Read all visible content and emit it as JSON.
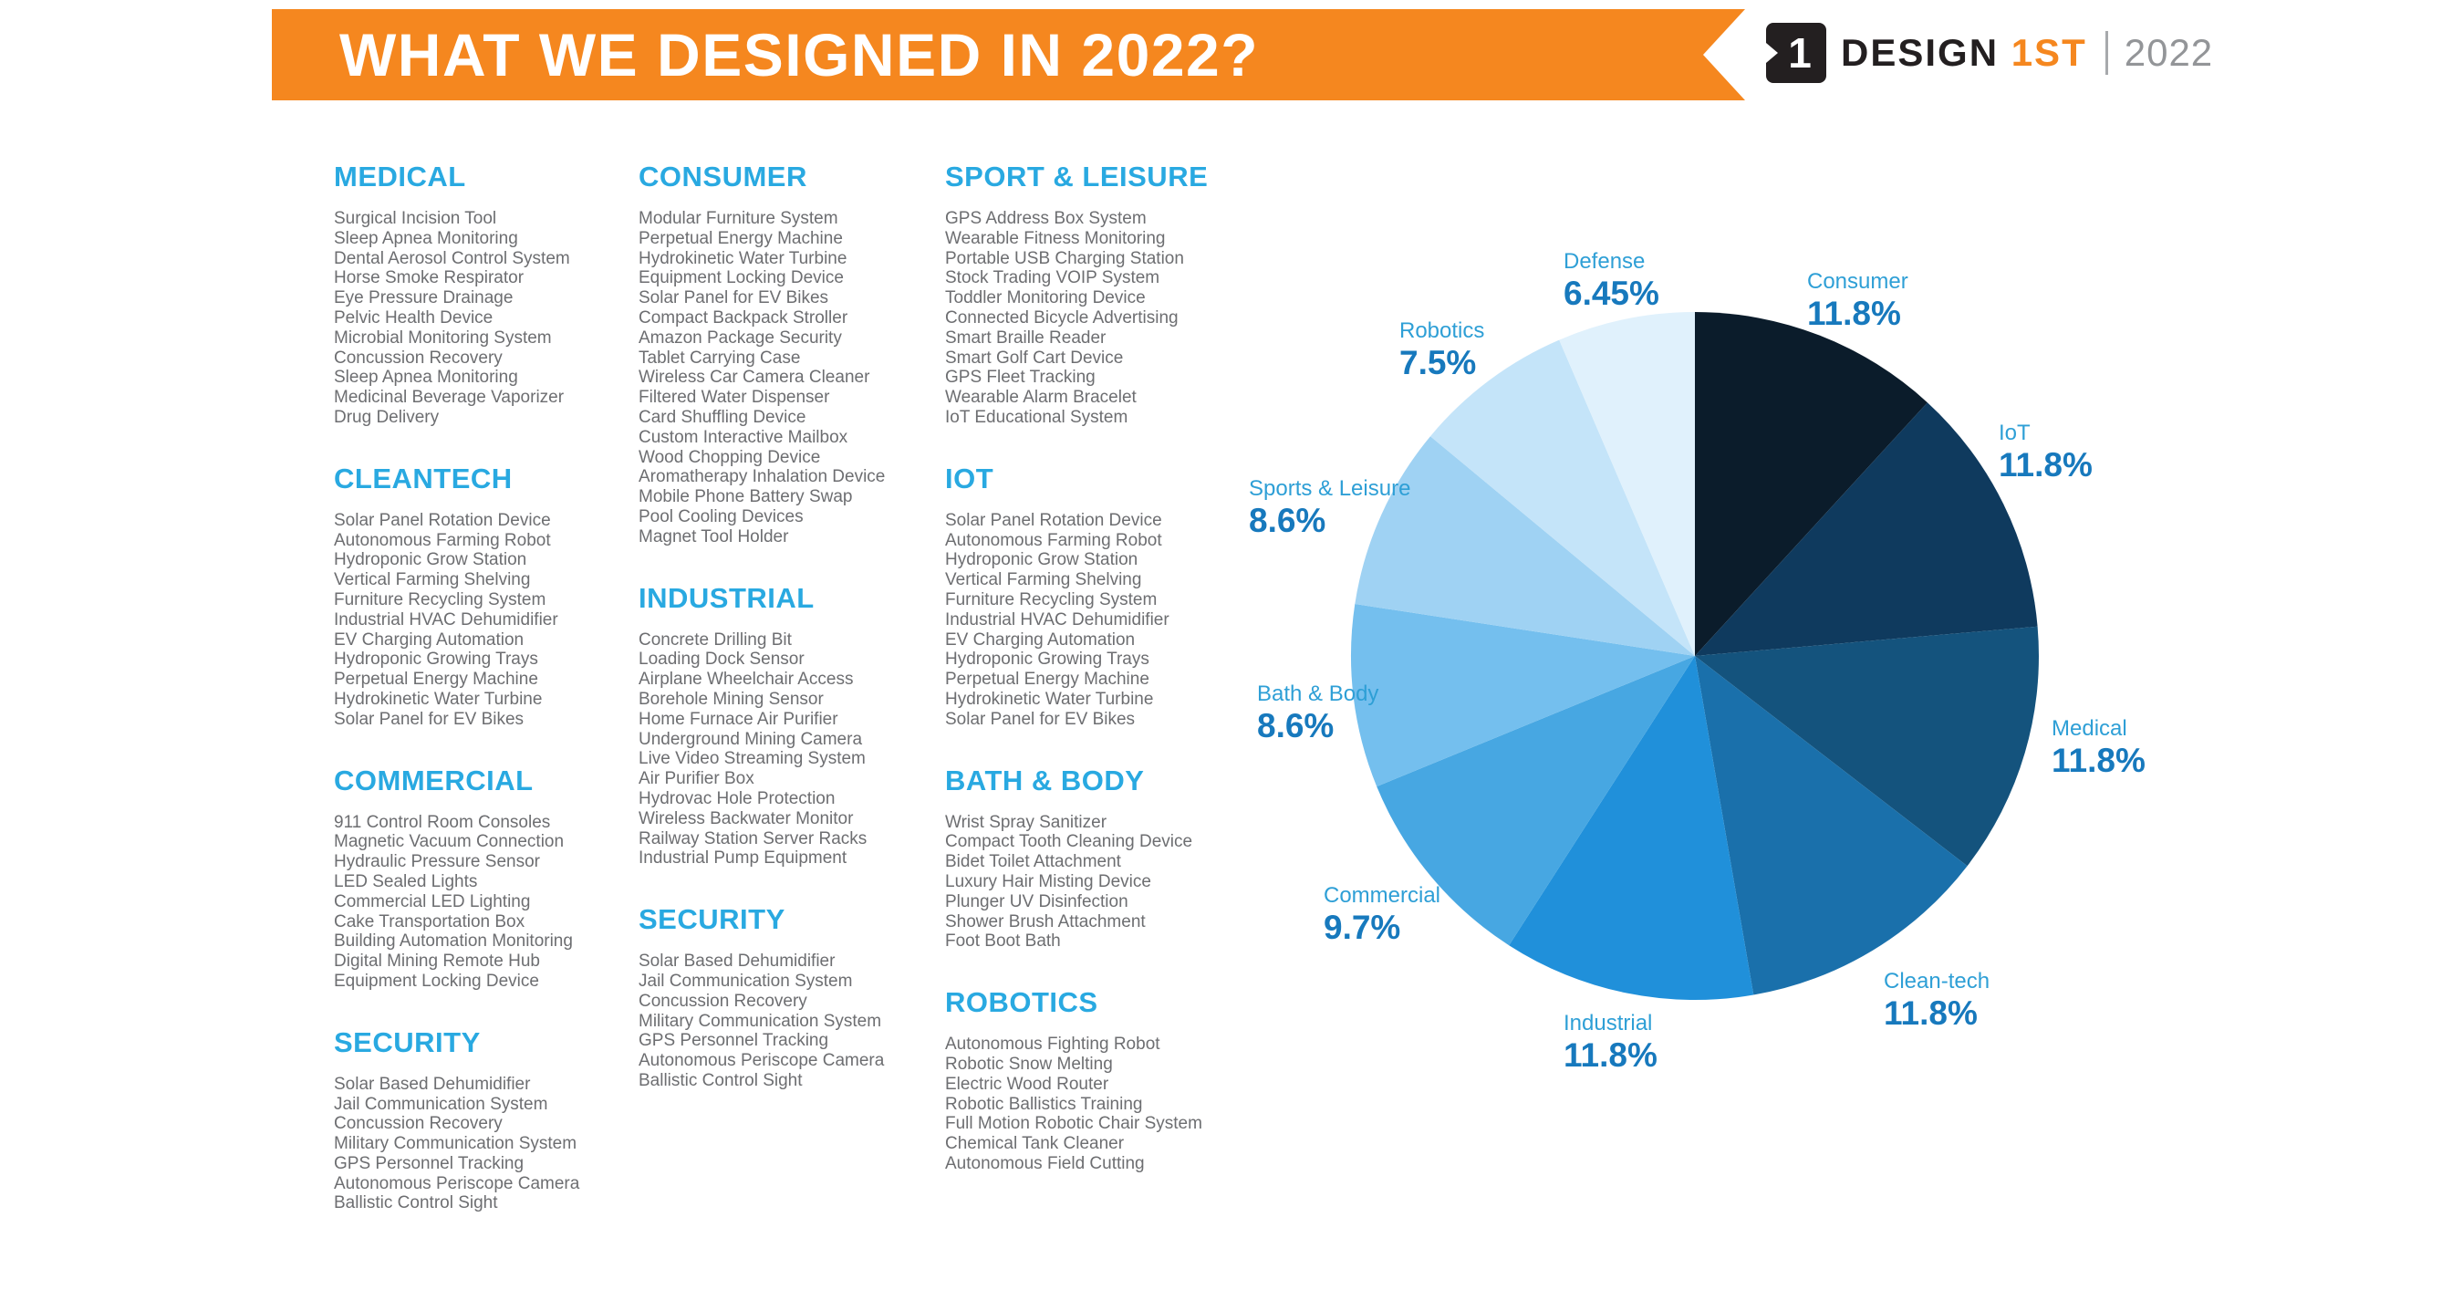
{
  "banner": {
    "title": "WHAT WE DESIGNED IN 2022?"
  },
  "logo": {
    "icon_glyph": "1",
    "brand_design": "DESIGN",
    "brand_1st": "1ST",
    "year": "2022"
  },
  "theme": {
    "orange": "#f5871f",
    "heading_blue": "#29a9e1",
    "list_gray": "#6d6e71",
    "logo_black": "#231f20",
    "logo_gray": "#939598",
    "white": "#ffffff"
  },
  "columns": [
    {
      "sections": [
        {
          "heading": "MEDICAL",
          "items": [
            "Surgical Incision Tool",
            "Sleep Apnea Monitoring",
            "Dental Aerosol Control System",
            "Horse  Smoke Respirator",
            "Eye Pressure Drainage",
            "Pelvic Health Device",
            "Microbial Monitoring System",
            "Concussion Recovery",
            "Sleep Apnea Monitoring",
            "Medicinal Beverage Vaporizer",
            "Drug Delivery"
          ]
        },
        {
          "heading": "CLEANTECH",
          "items": [
            "Solar Panel Rotation Device",
            "Autonomous Farming Robot",
            "Hydroponic Grow Station",
            "Vertical Farming Shelving",
            "Furniture Recycling System",
            "Industrial HVAC Dehumidifier",
            "EV Charging Automation",
            "Hydroponic Growing Trays",
            "Perpetual Energy Machine",
            "Hydrokinetic Water Turbine",
            "Solar Panel for EV Bikes"
          ]
        },
        {
          "heading": "COMMERCIAL",
          "items": [
            "911 Control Room Consoles",
            "Magnetic Vacuum Connection",
            "Hydraulic Pressure Sensor",
            "LED Sealed Lights",
            "Commercial LED Lighting",
            "Cake Transportation Box",
            "Building Automation Monitoring",
            "Digital Mining Remote Hub",
            "Equipment Locking Device"
          ]
        },
        {
          "heading": "SECURITY",
          "items": [
            "Solar Based Dehumidifier",
            "Jail Communication System",
            "Concussion Recovery",
            "Military Communication System",
            "GPS Personnel Tracking",
            "Autonomous Periscope Camera",
            "Ballistic Control Sight"
          ]
        }
      ]
    },
    {
      "sections": [
        {
          "heading": "CONSUMER",
          "items": [
            "Modular Furniture System",
            "Perpetual Energy Machine",
            "Hydrokinetic Water Turbine",
            "Equipment Locking Device",
            "Solar Panel for EV Bikes",
            "Compact Backpack Stroller",
            "Amazon Package Security",
            "Tablet Carrying Case",
            "Wireless Car Camera Cleaner",
            "Filtered Water Dispenser",
            "Card Shuffling Device",
            "Custom Interactive Mailbox",
            "Wood Chopping Device",
            "Aromatherapy Inhalation Device",
            "Mobile Phone Battery Swap",
            "Pool Cooling Devices",
            "Magnet Tool Holder"
          ]
        },
        {
          "heading": "INDUSTRIAL",
          "items": [
            "Concrete Drilling Bit",
            "Loading Dock Sensor",
            "Airplane Wheelchair Access",
            "Borehole Mining Sensor",
            "Home Furnace Air Purifier",
            "Underground Mining Camera",
            "Live Video Streaming System",
            "Air Purifier Box",
            "Hydrovac Hole Protection",
            "Wireless Backwater Monitor",
            "Railway Station Server Racks",
            "Industrial Pump Equipment"
          ]
        },
        {
          "heading": "SECURITY",
          "items": [
            "Solar Based Dehumidifier",
            "Jail Communication System",
            "Concussion Recovery",
            "Military Communication System",
            "GPS Personnel Tracking",
            "Autonomous Periscope Camera",
            "Ballistic Control Sight"
          ]
        }
      ]
    },
    {
      "sections": [
        {
          "heading": "SPORT & LEISURE",
          "items": [
            "GPS Address Box System",
            "Wearable Fitness Monitoring",
            "Portable USB Charging Station",
            "Stock Trading VOIP System",
            "Toddler Monitoring Device",
            "Connected Bicycle Advertising",
            "Smart Braille Reader",
            "Smart Golf Cart Device",
            "GPS Fleet Tracking",
            "Wearable Alarm Bracelet",
            "IoT Educational System"
          ]
        },
        {
          "heading": "IOT",
          "items": [
            "Solar Panel Rotation Device",
            "Autonomous Farming Robot",
            "Hydroponic Grow Station",
            "Vertical Farming Shelving",
            "Furniture Recycling System",
            "Industrial HVAC Dehumidifier",
            "EV Charging Automation",
            "Hydroponic Growing Trays",
            "Perpetual Energy Machine",
            "Hydrokinetic Water Turbine",
            "Solar Panel for EV Bikes"
          ]
        },
        {
          "heading": "BATH & BODY",
          "items": [
            "Wrist Spray Sanitizer",
            "Compact Tooth Cleaning Device",
            "Bidet Toilet Attachment",
            "Luxury Hair Misting Device",
            "Plunger UV Disinfection",
            "Shower Brush Attachment",
            "Foot Boot Bath"
          ]
        },
        {
          "heading": "ROBOTICS",
          "items": [
            "Autonomous Fighting Robot",
            "Robotic Snow Melting",
            "Electric Wood Router",
            "Robotic Ballistics Training",
            "Full Motion Robotic Chair System",
            "Chemical Tank Cleaner",
            "Autonomous Field Cutting"
          ]
        }
      ]
    }
  ],
  "chart_data": {
    "type": "pie",
    "title": "",
    "labels": [
      "Consumer",
      "IoT",
      "Medical",
      "Clean-tech",
      "Industrial",
      "Commercial",
      "Bath & Body",
      "Sports & Leisure",
      "Robotics",
      "Defense"
    ],
    "values": [
      11.8,
      11.8,
      11.8,
      11.8,
      11.8,
      9.7,
      8.6,
      8.6,
      7.5,
      6.45
    ],
    "display_percents": [
      "11.8%",
      "11.8%",
      "11.8%",
      "11.8%",
      "11.8%",
      "9.7%",
      "8.6%",
      "8.6%",
      "7.5%",
      "6.45%"
    ],
    "colors": [
      "#0b1c2b",
      "#0f3a5e",
      "#14537d",
      "#1a70ab",
      "#2090da",
      "#47a7e2",
      "#74bfee",
      "#9fd2f3",
      "#c4e4f9",
      "#e0f1fc"
    ],
    "start_angle_deg": 0,
    "direction": "clockwise",
    "legend_position": "around-slices",
    "label_name_color": "#2e9fd6",
    "label_pct_color": "#1779bd"
  }
}
